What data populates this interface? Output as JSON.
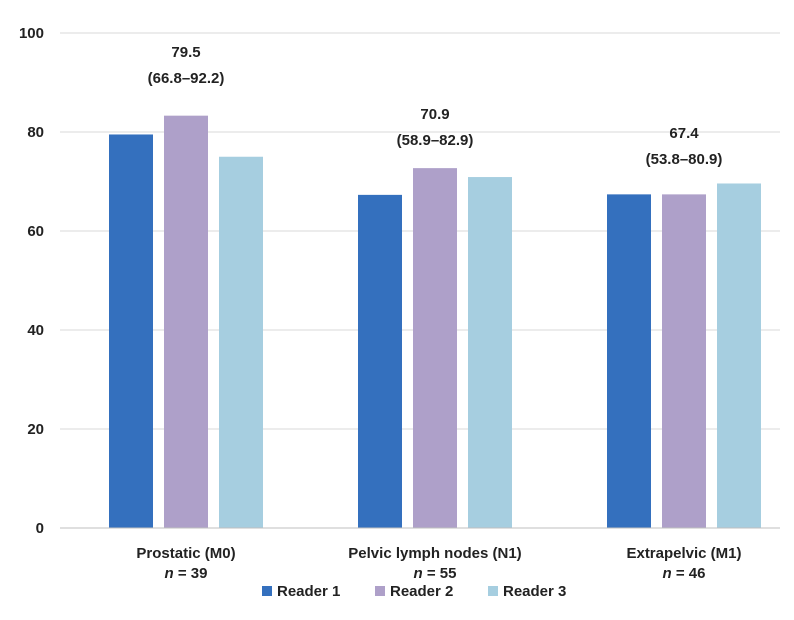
{
  "chart_data": {
    "type": "bar",
    "ylabel": "%",
    "ylim": [
      0,
      100
    ],
    "yticks": [
      0,
      20,
      40,
      60,
      80,
      100
    ],
    "grid": true,
    "legend_position": "bottom",
    "categories": [
      "Prostatic (M0)",
      "Pelvic lymph nodes (N1)",
      "Extrapelvic (M1)"
    ],
    "category_n": [
      "39",
      "55",
      "46"
    ],
    "n_prefix": "n",
    "n_sep": " = ",
    "series": [
      {
        "name": "Reader 1",
        "color": "#3470BE",
        "values": [
          79.5,
          67.3,
          67.4
        ]
      },
      {
        "name": "Reader 2",
        "color": "#AEA0C9",
        "values": [
          83.3,
          72.7,
          67.4
        ]
      },
      {
        "name": "Reader 3",
        "color": "#A6CEE0",
        "values": [
          75.0,
          70.9,
          69.6
        ]
      }
    ],
    "annotations": [
      {
        "value": "79.5",
        "ci": "(66.8–92.2)"
      },
      {
        "value": "70.9",
        "ci": "(58.9–82.9)"
      },
      {
        "value": "67.4",
        "ci": "(53.8–80.9)"
      }
    ]
  }
}
